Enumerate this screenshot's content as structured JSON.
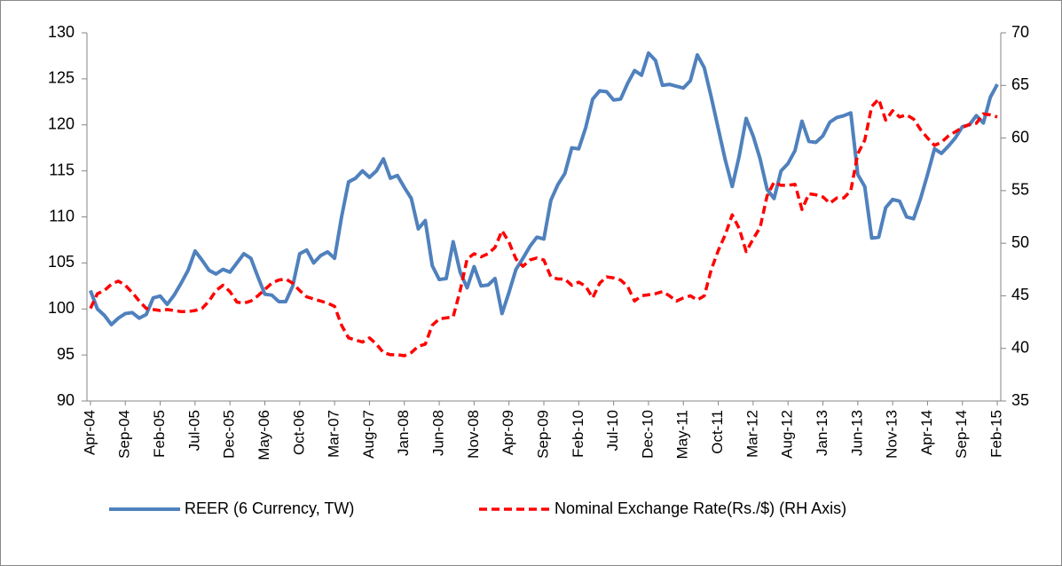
{
  "chart_data": {
    "type": "line",
    "categories": [
      "Apr-04",
      null,
      null,
      null,
      null,
      "Sep-04",
      null,
      null,
      null,
      null,
      "Feb-05",
      null,
      null,
      null,
      null,
      "Jul-05",
      null,
      null,
      null,
      null,
      "Dec-05",
      null,
      null,
      null,
      null,
      "May-06",
      null,
      null,
      null,
      null,
      "Oct-06",
      null,
      null,
      null,
      null,
      "Mar-07",
      null,
      null,
      null,
      null,
      "Aug-07",
      null,
      null,
      null,
      null,
      "Jan-08",
      null,
      null,
      null,
      null,
      "Jun-08",
      null,
      null,
      null,
      null,
      "Nov-08",
      null,
      null,
      null,
      null,
      "Apr-09",
      null,
      null,
      null,
      null,
      "Sep-09",
      null,
      null,
      null,
      null,
      "Feb-10",
      null,
      null,
      null,
      null,
      "Jul-10",
      null,
      null,
      null,
      null,
      "Dec-10",
      null,
      null,
      null,
      null,
      "May-11",
      null,
      null,
      null,
      null,
      "Oct-11",
      null,
      null,
      null,
      null,
      "Mar-12",
      null,
      null,
      null,
      null,
      "Aug-12",
      null,
      null,
      null,
      null,
      "Jan-13",
      null,
      null,
      null,
      null,
      "Jun-13",
      null,
      null,
      null,
      null,
      "Nov-13",
      null,
      null,
      null,
      null,
      "Apr-14",
      null,
      null,
      null,
      null,
      "Sep-14",
      null,
      null,
      null,
      null,
      "Feb-15"
    ],
    "series": [
      {
        "name": "REER (6 Currency, TW)",
        "color": "#4f81bd",
        "dashed": false,
        "values": [
          102,
          100,
          99.3,
          98.3,
          99,
          99.5,
          99.6,
          99,
          99.4,
          101.2,
          101.4,
          100.5,
          101.5,
          102.8,
          104.2,
          106.3,
          105.3,
          104.2,
          103.8,
          104.3,
          104,
          105,
          106,
          105.5,
          103.5,
          101.6,
          101.5,
          100.8,
          100.8,
          102.5,
          106,
          106.4,
          105,
          105.8,
          106.2,
          105.5,
          110,
          113.8,
          114.2,
          115,
          114.3,
          115,
          116.3,
          114.2,
          114.5,
          113.2,
          112,
          108.7,
          109.6,
          104.7,
          103.2,
          103.3,
          107.3,
          104,
          102.3,
          104.6,
          102.5,
          102.6,
          103.3,
          99.5,
          101.8,
          104.3,
          105.5,
          106.8,
          107.8,
          107.6,
          111.8,
          113.5,
          114.7,
          117.5,
          117.4,
          119.7,
          122.8,
          123.7,
          123.6,
          122.7,
          122.8,
          124.5,
          125.9,
          125.4,
          127.8,
          127,
          124.3,
          124.4,
          124.2,
          124,
          124.8,
          127.6,
          126.2,
          123,
          119.6,
          116.2,
          113.3,
          116.6,
          120.7,
          118.8,
          116.3,
          113,
          112,
          115,
          115.8,
          117.2,
          120.4,
          118.2,
          118.1,
          118.8,
          120.3,
          120.8,
          121,
          121.3,
          114.6,
          113.3,
          107.7,
          107.8,
          111,
          111.9,
          111.7,
          110,
          109.8,
          112,
          114.6,
          117.4,
          116.9,
          117.7,
          118.6,
          119.8,
          120,
          121,
          120.2,
          123,
          124.4
        ]
      },
      {
        "name": "Nominal Exchange Rate(Rs./$) (RH Axis)",
        "color": "#ff0000",
        "dashed": true,
        "axis": "y2",
        "values": [
          43.8,
          45.2,
          45.5,
          46.1,
          46.4,
          46,
          45.3,
          44.5,
          43.8,
          43.7,
          43.6,
          43.7,
          43.6,
          43.5,
          43.5,
          43.6,
          43.8,
          44.5,
          45.5,
          46,
          45.4,
          44.4,
          44.3,
          44.5,
          45,
          45.6,
          46.2,
          46.5,
          46.6,
          46.2,
          45.5,
          44.9,
          44.7,
          44.5,
          44.3,
          44,
          42.2,
          41,
          40.8,
          40.6,
          41,
          40.4,
          39.6,
          39.4,
          39.4,
          39.3,
          39.6,
          40.2,
          40.4,
          42.2,
          42.8,
          42.9,
          43,
          45.5,
          48.5,
          49,
          48.7,
          49,
          49.6,
          51.2,
          50.1,
          48.5,
          47.8,
          48.4,
          48.6,
          48.4,
          46.8,
          46.6,
          46.6,
          46,
          46.3,
          45.9,
          44.8,
          46.2,
          46.8,
          46.7,
          46.5,
          45.9,
          44.5,
          45,
          45.1,
          45.2,
          45.4,
          45,
          44.5,
          44.8,
          45,
          44.6,
          45,
          47.5,
          49.3,
          50.8,
          52.7,
          51.4,
          49.2,
          50.4,
          51.5,
          54.5,
          55.8,
          55.5,
          55.5,
          55.6,
          53.2,
          54.7,
          54.6,
          54.4,
          53.8,
          54.3,
          54.3,
          55,
          58.5,
          59.8,
          63,
          63.7,
          61.7,
          62.6,
          62,
          62.2,
          61.8,
          60.8,
          60,
          59.3,
          59.6,
          60.2,
          60.6,
          61,
          61.3,
          61.4,
          62.3,
          62.2,
          62
        ]
      }
    ],
    "ylim": [
      90,
      130
    ],
    "yticks": [
      90,
      95,
      100,
      105,
      110,
      115,
      120,
      125,
      130
    ],
    "y2lim": [
      35,
      70
    ],
    "y2ticks": [
      35,
      40,
      45,
      50,
      55,
      60,
      65,
      70
    ],
    "grid": false,
    "legend": "bottom"
  }
}
